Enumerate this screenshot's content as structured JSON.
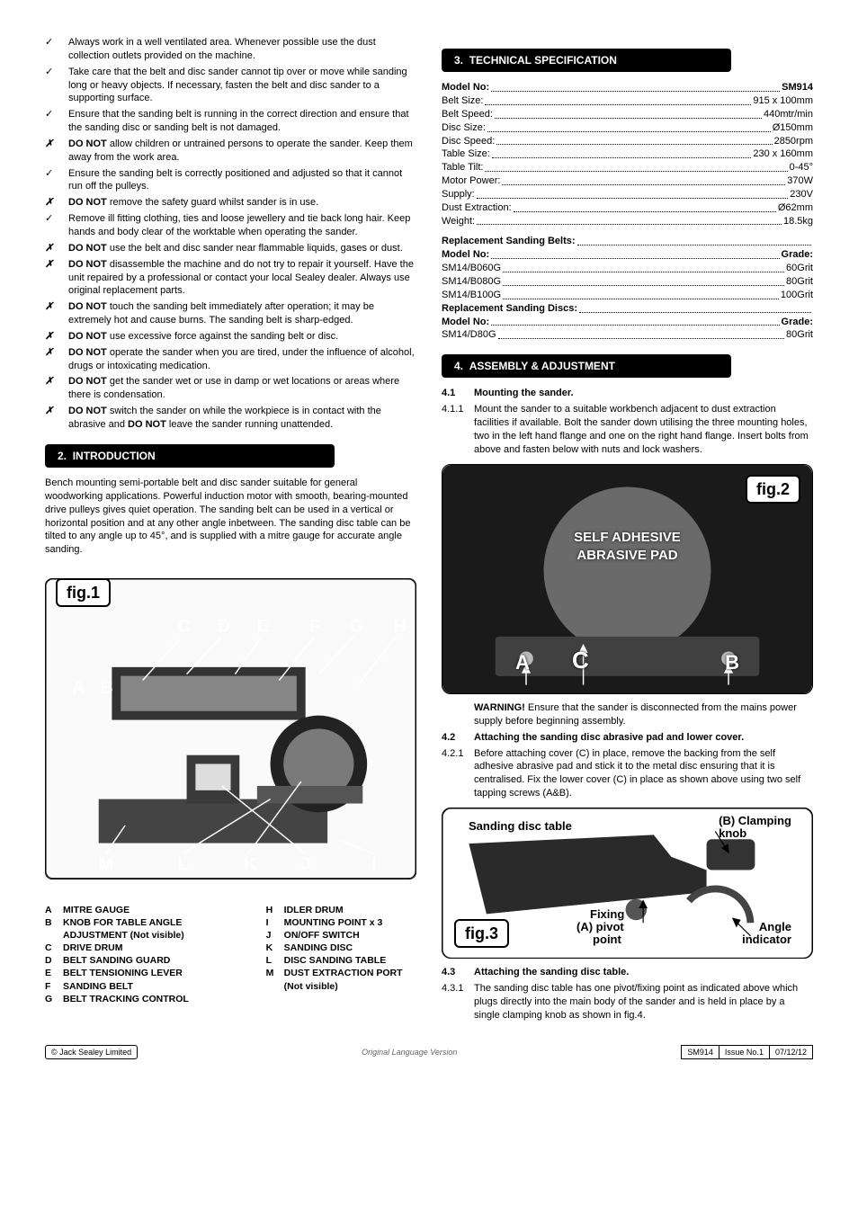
{
  "safety": [
    {
      "mark": "check",
      "text": "Always work in a well ventilated area. Whenever possible use the dust collection outlets provided on the machine."
    },
    {
      "mark": "check",
      "text": "Take care that the belt and disc sander cannot tip over or move while sanding long or heavy objects. If necessary, fasten the belt and disc sander to a supporting surface."
    },
    {
      "mark": "check",
      "text": "Ensure that the sanding belt is running in the correct direction and ensure that the sanding disc or sanding belt is not damaged."
    },
    {
      "mark": "cross",
      "html": "<b>DO NOT</b> allow children or untrained persons to operate the sander. Keep them away from the work area."
    },
    {
      "mark": "check",
      "text": "Ensure the sanding belt is correctly positioned and adjusted so that it cannot run off the pulleys."
    },
    {
      "mark": "cross",
      "html": "<b>DO NOT</b> remove the safety guard whilst sander is in use."
    },
    {
      "mark": "check",
      "text": "Remove ill fitting clothing, ties and loose jewellery and tie back long hair. Keep hands and body clear of the worktable when operating the sander."
    },
    {
      "mark": "cross",
      "html": "<b>DO NOT</b> use the belt and disc sander near flammable liquids, gases or dust."
    },
    {
      "mark": "cross",
      "html": "<b>DO NOT</b> disassemble the machine and do not try to repair it yourself. Have the unit repaired by a professional or contact your local Sealey dealer. Always use original replacement parts."
    },
    {
      "mark": "cross",
      "html": "<b>DO NOT</b> touch the sanding belt immediately after operation; it may be extremely hot and cause burns. The sanding belt is sharp-edged."
    },
    {
      "mark": "cross",
      "html": "<b>DO NOT</b> use excessive force against the sanding belt or disc."
    },
    {
      "mark": "cross",
      "html": "<b>DO NOT</b> operate the sander when you are tired, under the influence of alcohol, drugs or intoxicating medication."
    },
    {
      "mark": "cross",
      "html": "<b>DO NOT</b> get the sander wet or use in damp or wet locations or areas where there is condensation."
    },
    {
      "mark": "cross",
      "html": "<b>DO NOT</b> switch the sander on while the workpiece is in contact with the abrasive and <b>DO NOT</b> leave the sander running unattended."
    }
  ],
  "section2": {
    "num": "2.",
    "title": "INTRODUCTION"
  },
  "intro": "Bench mounting semi-portable belt and disc sander suitable for general woodworking applications. Powerful induction motor with smooth, bearing-mounted drive pulleys gives quiet operation. The sanding belt can be used in a vertical or horizontal position and at any other angle inbetween. The sanding disc table can be tilted to any angle up to 45°, and is supplied with a mitre gauge for accurate angle sanding.",
  "fig1_label": "fig.1",
  "fig1_letters": [
    "A",
    "B",
    "C",
    "D",
    "E",
    "F",
    "G",
    "H",
    "I",
    "J",
    "K",
    "L",
    "M"
  ],
  "parts_left": [
    {
      "l": "A",
      "t": "MITRE GAUGE"
    },
    {
      "l": "B",
      "t": "KNOB  FOR TABLE ANGLE ADJUSTMENT (Not visible)"
    },
    {
      "l": "C",
      "t": "DRIVE DRUM"
    },
    {
      "l": "D",
      "t": "BELT SANDING GUARD"
    },
    {
      "l": "E",
      "t": "BELT TENSIONING LEVER"
    },
    {
      "l": "F",
      "t": "SANDING BELT"
    },
    {
      "l": "G",
      "t": "BELT TRACKING CONTROL"
    }
  ],
  "parts_right": [
    {
      "l": "H",
      "t": "IDLER DRUM"
    },
    {
      "l": "I",
      "t": "MOUNTING POINT x 3"
    },
    {
      "l": "J",
      "t": "ON/OFF SWITCH"
    },
    {
      "l": "K",
      "t": "SANDING DISC"
    },
    {
      "l": "L",
      "t": "DISC SANDING TABLE"
    },
    {
      "l": "M",
      "t": "DUST EXTRACTION PORT (Not visible)"
    }
  ],
  "section3": {
    "num": "3.",
    "title": "TECHNICAL SPECIFICATION"
  },
  "specs": [
    {
      "label": "Model No:",
      "val": "SM914",
      "bold": true
    },
    {
      "label": "Belt Size:",
      "val": "915 x 100mm"
    },
    {
      "label": "Belt Speed:",
      "val": "440mtr/min"
    },
    {
      "label": "Disc Size:",
      "val": "Ø150mm"
    },
    {
      "label": "Disc Speed:",
      "val": "2850rpm"
    },
    {
      "label": "Table Size:",
      "val": "230 x 160mm"
    },
    {
      "label": "Table Tilt:",
      "val": "0-45°"
    },
    {
      "label": "Motor Power:",
      "val": "370W"
    },
    {
      "label": "Supply:",
      "val": "230V"
    },
    {
      "label": "Dust Extraction:",
      "val": "Ø62mm"
    },
    {
      "label": "Weight:",
      "val": "18.5kg"
    }
  ],
  "belts_head": {
    "label": "Replacement Sanding Belts:",
    "val": ""
  },
  "belts": [
    {
      "label": "Model No:",
      "val": "Grade:",
      "bold": true
    },
    {
      "label": "SM14/B060G",
      "val": "60Grit"
    },
    {
      "label": "SM14/B080G",
      "val": "80Grit"
    },
    {
      "label": "SM14/B100G",
      "val": "100Grit"
    }
  ],
  "discs_head": {
    "label": "Replacement Sanding Discs:",
    "val": ""
  },
  "discs": [
    {
      "label": "Model No:",
      "val": "Grade:",
      "bold": true
    },
    {
      "label": "SM14/D80G",
      "val": "80Grit"
    }
  ],
  "section4": {
    "num": "4.",
    "title": "ASSEMBLY & ADJUSTMENT"
  },
  "s4_1": {
    "num": "4.1",
    "title": "Mounting the sander."
  },
  "s4_1_1": {
    "num": "4.1.1",
    "text": "Mount the sander to a suitable workbench adjacent to dust extraction facilities if available. Bolt the sander down utilising the three mounting holes, two in the left hand flange and one on the right hand flange. Insert bolts from above and fasten below with nuts and lock washers."
  },
  "fig2": {
    "label": "fig.2",
    "overlay": "SELF ADHESIVE\nABRASIVE PAD",
    "A": "A",
    "B": "B",
    "C": "C"
  },
  "warning": "Ensure that the sander is disconnected from the mains power supply before beginning assembly.",
  "s4_2": {
    "num": "4.2",
    "title": "Attaching the sanding disc abrasive pad and lower cover."
  },
  "s4_2_1": {
    "num": "4.2.1",
    "text": "Before attaching cover (C) in place, remove the backing from the self adhesive abrasive pad and stick it to the metal disc ensuring that it is centralised. Fix the lower cover (C) in place as shown above using two self tapping screws (A&B)."
  },
  "fig3": {
    "label": "fig.3",
    "l1": "Sanding disc table",
    "l2": "Clamping knob",
    "l3": "Fixing pivot point",
    "l4": "Angle indicator",
    "A": "(A)",
    "B": "(B)"
  },
  "s4_3": {
    "num": "4.3",
    "title": "Attaching the sanding disc table."
  },
  "s4_3_1": {
    "num": "4.3.1",
    "text": "The sanding disc table has one pivot/fixing point as indicated above which plugs directly into the main body of the sander and is held in place by a single clamping knob as shown in fig.4."
  },
  "footer": {
    "left": "© Jack Sealey Limited",
    "mid": "Original Language Version",
    "r1": "SM914",
    "r2": "Issue No.1",
    "r3": "07/12/12"
  }
}
